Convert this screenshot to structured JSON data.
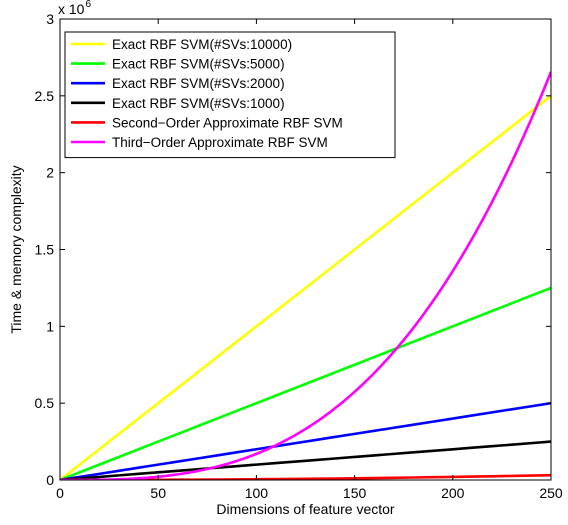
{
  "chart_data": {
    "type": "line",
    "title": "",
    "xlabel": "Dimensions of feature vector",
    "ylabel": "Time & memory complexity",
    "xlim": [
      0,
      250
    ],
    "ylim": [
      0,
      3000000
    ],
    "x_ticks": [
      0,
      50,
      100,
      150,
      200,
      250
    ],
    "y_ticks": [
      0,
      500000,
      1000000,
      1500000,
      2000000,
      2500000,
      3000000
    ],
    "y_tick_labels": [
      "0",
      "0.5",
      "1",
      "1.5",
      "2",
      "2.5",
      "3"
    ],
    "y_scale_label": {
      "base": "x 10",
      "exponent": "6"
    },
    "grid": false,
    "legend_position": "top-left",
    "x": [
      0,
      10,
      20,
      30,
      40,
      50,
      60,
      70,
      80,
      90,
      100,
      110,
      120,
      130,
      140,
      150,
      160,
      170,
      180,
      190,
      200,
      210,
      220,
      230,
      240,
      250
    ],
    "series": [
      {
        "name": "Exact RBF SVM(#SVs:10000)",
        "color": "#ffff00",
        "values": [
          0,
          100000,
          200000,
          300000,
          400000,
          500000,
          600000,
          700000,
          800000,
          900000,
          1000000,
          1100000,
          1200000,
          1300000,
          1400000,
          1500000,
          1600000,
          1700000,
          1800000,
          1900000,
          2000000,
          2100000,
          2200000,
          2300000,
          2400000,
          2500000
        ]
      },
      {
        "name": "Exact RBF SVM(#SVs:5000)",
        "color": "#00ff00",
        "values": [
          0,
          50000,
          100000,
          150000,
          200000,
          250000,
          300000,
          350000,
          400000,
          450000,
          500000,
          550000,
          600000,
          650000,
          700000,
          750000,
          800000,
          850000,
          900000,
          950000,
          1000000,
          1050000,
          1100000,
          1150000,
          1200000,
          1250000
        ]
      },
      {
        "name": "Exact RBF SVM(#SVs:2000)",
        "color": "#0000ff",
        "values": [
          0,
          20000,
          40000,
          60000,
          80000,
          100000,
          120000,
          140000,
          160000,
          180000,
          200000,
          220000,
          240000,
          260000,
          280000,
          300000,
          320000,
          340000,
          360000,
          380000,
          400000,
          420000,
          440000,
          460000,
          480000,
          500000
        ]
      },
      {
        "name": "Exact RBF SVM(#SVs:1000)",
        "color": "#000000",
        "values": [
          0,
          10000,
          20000,
          30000,
          40000,
          50000,
          60000,
          70000,
          80000,
          90000,
          100000,
          110000,
          120000,
          130000,
          140000,
          150000,
          160000,
          170000,
          180000,
          190000,
          200000,
          210000,
          220000,
          230000,
          240000,
          250000
        ]
      },
      {
        "name": "Second−Order Approximate RBF SVM",
        "color": "#ff0000",
        "values": [
          0,
          50,
          200,
          450,
          800,
          1250,
          1800,
          2450,
          3200,
          4050,
          5000,
          6050,
          7200,
          8450,
          9800,
          11250,
          12800,
          14450,
          16200,
          18050,
          20000,
          22050,
          24200,
          26450,
          28800,
          31250
        ]
      },
      {
        "name": "Third−Order Approximate RBF SVM",
        "color": "#ff00ff",
        "values": [
          0,
          170,
          1360,
          4590,
          10880,
          21250,
          36720,
          58310,
          87040,
          123930,
          170000,
          226270,
          293760,
          373490,
          466480,
          573750,
          696320,
          835210,
          991440,
          1166030,
          1360000,
          1574370,
          1810160,
          2068390,
          2350080,
          2656250
        ]
      }
    ]
  }
}
